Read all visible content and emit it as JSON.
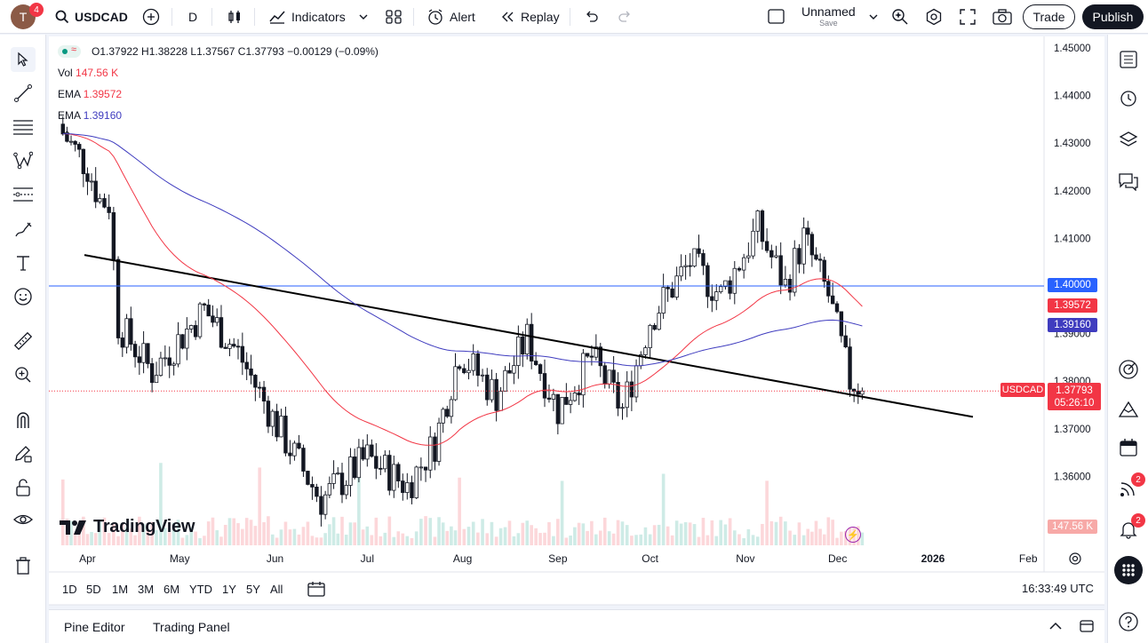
{
  "topbar": {
    "avatar_letter": "T",
    "avatar_badge": "4",
    "symbol": "USDCAD",
    "interval": "D",
    "indicators_label": "Indicators",
    "alert_label": "Alert",
    "replay_label": "Replay",
    "layout_name": "Unnamed",
    "layout_sub": "Save",
    "trade_label": "Trade",
    "publish_label": "Publish"
  },
  "legend": {
    "ohlc": "O1.37922  H1.38228  L1.37567  C1.37793  −0.00129 (−0.09%)",
    "vol_label": "Vol",
    "vol_value": "147.56 K",
    "ema1_label": "EMA",
    "ema1_value": "1.39572",
    "ema2_label": "EMA",
    "ema2_value": "1.39160"
  },
  "price_axis": {
    "ticks": [
      "1.45000",
      "1.44000",
      "1.43000",
      "1.42000",
      "1.41000",
      "1.40000",
      "1.39000",
      "1.38000",
      "1.37000",
      "1.36000"
    ],
    "tag_level": "1.40000",
    "tag_ema1": "1.39572",
    "tag_ema2": "1.39160",
    "tag_symbol": "USDCAD",
    "tag_last": "1.37793",
    "tag_countdown": "05:26:10",
    "tag_volume": "147.56 K"
  },
  "time_axis": {
    "ticks": [
      "Apr",
      "May",
      "Jun",
      "Jul",
      "Aug",
      "Sep",
      "Oct",
      "Nov",
      "Dec",
      "2026",
      "Feb"
    ]
  },
  "watermark": "TradingView",
  "timeframes": [
    "1D",
    "5D",
    "1M",
    "3M",
    "6M",
    "YTD",
    "1Y",
    "5Y",
    "All"
  ],
  "clock": "16:33:49 UTC",
  "bottom_tabs": [
    "Pine Editor",
    "Trading Panel"
  ],
  "right_badges": {
    "ideas": "2",
    "alerts": "2"
  },
  "colors": {
    "up": "#089981",
    "down": "#f23645",
    "ema1": "#f23645",
    "ema2": "#3f3cbf",
    "level": "#2962ff",
    "trendline": "#000000"
  },
  "chart_data": {
    "type": "candlestick",
    "symbol": "USDCAD",
    "interval": "D",
    "ylim": [
      1.353,
      1.452
    ],
    "horizontal_level": 1.4,
    "last_close": 1.37793,
    "trendline": [
      {
        "x": "2025-03-31",
        "y": 1.4065
      },
      {
        "x": "2026-01-14",
        "y": 1.3725
      }
    ],
    "ema_fast_last": 1.39572,
    "ema_slow_last": 1.3916,
    "monthly_path": [
      {
        "x": "2025-03-24",
        "y": 1.432
      },
      {
        "x": "2025-04-01",
        "y": 1.425
      },
      {
        "x": "2025-04-05",
        "y": 1.418
      },
      {
        "x": "2025-04-08",
        "y": 1.4175
      },
      {
        "x": "2025-04-11",
        "y": 1.392
      },
      {
        "x": "2025-04-22",
        "y": 1.382
      },
      {
        "x": "2025-05-09",
        "y": 1.395
      },
      {
        "x": "2025-05-20",
        "y": 1.386
      },
      {
        "x": "2025-06-03",
        "y": 1.369
      },
      {
        "x": "2025-06-16",
        "y": 1.355
      },
      {
        "x": "2025-07-01",
        "y": 1.364
      },
      {
        "x": "2025-07-14",
        "y": 1.358
      },
      {
        "x": "2025-07-23",
        "y": 1.367
      },
      {
        "x": "2025-07-31",
        "y": 1.386
      },
      {
        "x": "2025-08-12",
        "y": 1.377
      },
      {
        "x": "2025-08-22",
        "y": 1.389
      },
      {
        "x": "2025-09-01",
        "y": 1.374
      },
      {
        "x": "2025-09-12",
        "y": 1.385
      },
      {
        "x": "2025-09-22",
        "y": 1.374
      },
      {
        "x": "2025-10-01",
        "y": 1.393
      },
      {
        "x": "2025-10-14",
        "y": 1.405
      },
      {
        "x": "2025-10-24",
        "y": 1.398
      },
      {
        "x": "2025-11-05",
        "y": 1.412
      },
      {
        "x": "2025-11-14",
        "y": 1.4
      },
      {
        "x": "2025-11-20",
        "y": 1.41
      },
      {
        "x": "2025-11-28",
        "y": 1.398
      },
      {
        "x": "2025-12-05",
        "y": 1.38
      },
      {
        "x": "2025-12-09",
        "y": 1.379
      }
    ]
  }
}
